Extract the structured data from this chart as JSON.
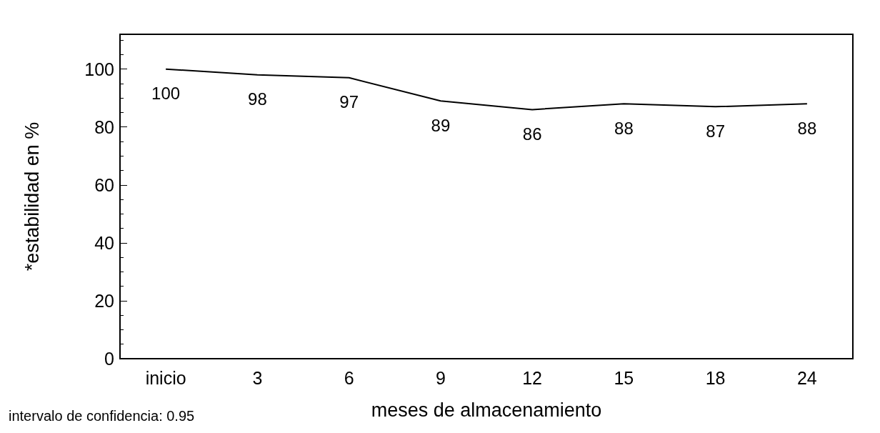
{
  "chart_data": {
    "type": "line",
    "xlabel": "meses de almacenamiento",
    "ylabel": "*estabilidad en %",
    "categories": [
      "inicio",
      "3",
      "6",
      "9",
      "12",
      "15",
      "18",
      "24"
    ],
    "series": [
      {
        "color": "#000000",
        "values": [
          100,
          98,
          97,
          89,
          86,
          88,
          87,
          88
        ]
      }
    ],
    "ylim": [
      0,
      112
    ],
    "yticks": [
      0,
      20,
      40,
      60,
      80,
      100
    ],
    "data_labels": true,
    "grid": false,
    "marker": "none",
    "line_style": "solid",
    "annotations": [
      "intervalo de confidencia: 0.95"
    ]
  }
}
